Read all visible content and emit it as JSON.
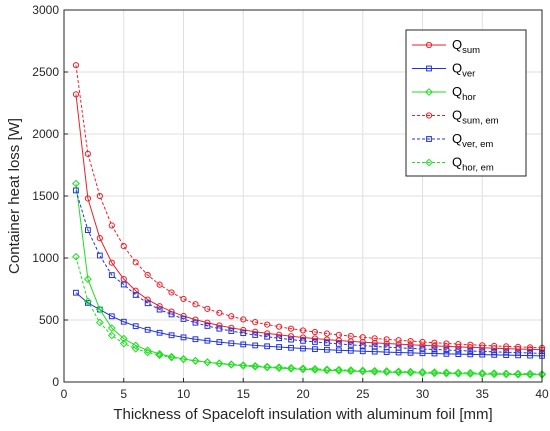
{
  "chart_data": {
    "type": "line",
    "title": "",
    "xlabel": "Thickness of Spaceloft insulation with aluminum foil [mm]",
    "ylabel": "Container heat loss [W]",
    "xlim": [
      0,
      40
    ],
    "ylim": [
      0,
      3000
    ],
    "xticks": [
      0,
      5,
      10,
      15,
      20,
      25,
      30,
      35,
      40
    ],
    "yticks": [
      0,
      500,
      1000,
      1500,
      2000,
      2500,
      3000
    ],
    "grid": true,
    "legend_position": "top-right",
    "x": [
      1,
      2,
      3,
      4,
      5,
      6,
      7,
      8,
      9,
      10,
      11,
      12,
      13,
      14,
      15,
      16,
      17,
      18,
      19,
      20,
      21,
      22,
      23,
      24,
      25,
      26,
      27,
      28,
      29,
      30,
      31,
      32,
      33,
      34,
      35,
      36,
      37,
      38,
      39,
      40
    ],
    "series": [
      {
        "name": "Q",
        "sub": "sum",
        "color": "#e8212a",
        "dash": "solid",
        "marker": "circle",
        "values": [
          2320,
          1480,
          1160,
          962,
          830,
          736,
          665,
          611,
          568,
          532,
          503,
          478,
          456,
          437,
          420,
          405,
          392,
          381,
          369,
          359,
          351,
          342,
          335,
          328,
          322,
          316,
          310,
          305,
          300,
          295,
          291,
          287,
          283,
          279,
          276,
          272,
          269,
          266,
          263,
          260
        ]
      },
      {
        "name": "Q",
        "sub": "ver",
        "color": "#2233dd",
        "dash": "solid",
        "marker": "square",
        "values": [
          720,
          638,
          584,
          530,
          486,
          450,
          421,
          397,
          377,
          360,
          345,
          333,
          322,
          312,
          303,
          295,
          288,
          282,
          276,
          270,
          265,
          260,
          256,
          252,
          248,
          245,
          241,
          238,
          235,
          232,
          230,
          227,
          225,
          223,
          221,
          219,
          217,
          215,
          213,
          211
        ]
      },
      {
        "name": "Q",
        "sub": "hor",
        "color": "#22dd22",
        "dash": "solid",
        "marker": "diamond",
        "values": [
          1600,
          830,
          585,
          435,
          350,
          295,
          256,
          227,
          204,
          186,
          171,
          159,
          148,
          139,
          131,
          124,
          118,
          112,
          107,
          102,
          98,
          94,
          91,
          88,
          85,
          82,
          80,
          77,
          75,
          73,
          71,
          69,
          67,
          66,
          64,
          63,
          62,
          60,
          59,
          58
        ]
      },
      {
        "name": "Q",
        "sub": "sum, em",
        "color": "#e8212a",
        "dash": "dashed",
        "marker": "circle",
        "values": [
          2555,
          1840,
          1500,
          1262,
          1096,
          965,
          863,
          785,
          722,
          670,
          627,
          590,
          558,
          530,
          505,
          483,
          463,
          446,
          430,
          416,
          403,
          391,
          380,
          370,
          361,
          352,
          344,
          337,
          330,
          323,
          317,
          311,
          306,
          301,
          296,
          291,
          287,
          283,
          279,
          275
        ]
      },
      {
        "name": "Q",
        "sub": "ver, em",
        "color": "#2233dd",
        "dash": "dashed",
        "marker": "square",
        "values": [
          1545,
          1225,
          1020,
          862,
          786,
          702,
          635,
          584,
          545,
          508,
          478,
          452,
          430,
          411,
          394,
          379,
          365,
          353,
          342,
          332,
          323,
          315,
          307,
          300,
          293,
          287,
          281,
          276,
          271,
          266,
          262,
          258,
          254,
          250,
          247,
          243,
          240,
          237,
          234,
          231
        ]
      },
      {
        "name": "Q",
        "sub": "hor, em",
        "color": "#22dd22",
        "dash": "dashed",
        "marker": "diamond",
        "values": [
          1010,
          650,
          480,
          375,
          310,
          268,
          238,
          216,
          198,
          183,
          171,
          160,
          151,
          143,
          136,
          130,
          124,
          119,
          114,
          110,
          106,
          102,
          99,
          96,
          93,
          90,
          88,
          85,
          83,
          81,
          79,
          77,
          75,
          74,
          72,
          71,
          69,
          68,
          67,
          65
        ]
      }
    ]
  }
}
